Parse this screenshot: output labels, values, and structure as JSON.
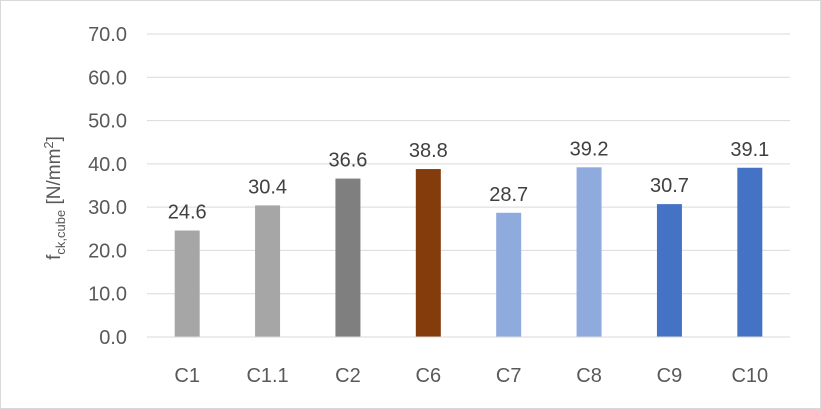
{
  "chart_data": {
    "type": "bar",
    "categories": [
      "C1",
      "C1.1",
      "C2",
      "C6",
      "C7",
      "C8",
      "C9",
      "C10"
    ],
    "values": [
      24.6,
      30.4,
      36.6,
      38.8,
      28.7,
      39.2,
      30.7,
      39.1
    ],
    "data_labels": [
      "24.6",
      "30.4",
      "36.6",
      "38.8",
      "28.7",
      "39.2",
      "30.7",
      "39.1"
    ],
    "bar_colors": [
      "#a6a6a6",
      "#a6a6a6",
      "#7f7f7f",
      "#843c0c",
      "#8faadc",
      "#8faadc",
      "#4472c4",
      "#4472c4"
    ],
    "ylabel": {
      "main": "f",
      "sub": "ck,cube",
      "unit_prefix": " [N/mm",
      "unit_sup": "2",
      "unit_suffix": "]"
    },
    "ylim": [
      0,
      70
    ],
    "yticks": [
      "0.0",
      "10.0",
      "20.0",
      "30.0",
      "40.0",
      "50.0",
      "60.0",
      "70.0"
    ],
    "grid": true,
    "gridline_color": "#d9d9d9",
    "legend": "none"
  }
}
